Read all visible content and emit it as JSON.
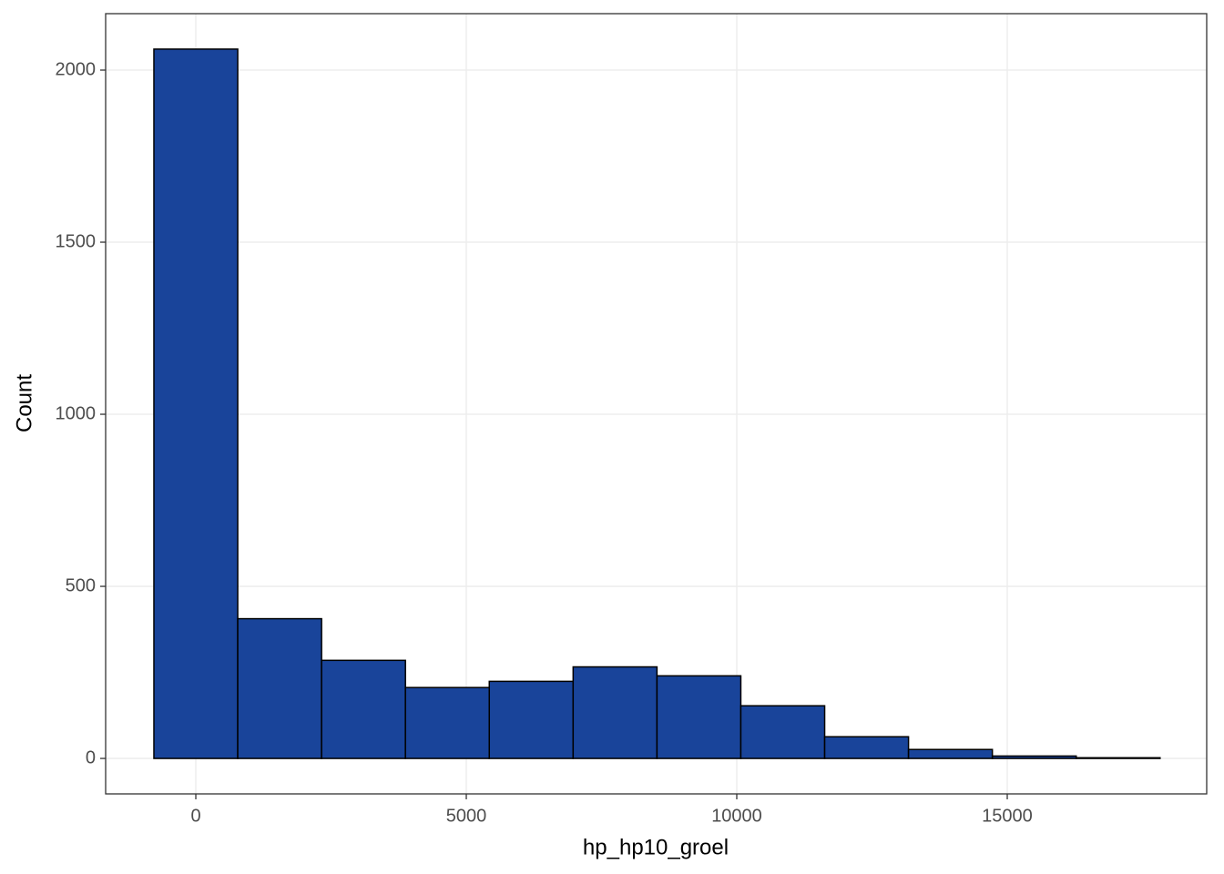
{
  "chart_data": {
    "type": "histogram",
    "x_label": "hp_hp10_groel",
    "y_label": "Count",
    "bins": [
      -775,
      775,
      2325,
      3875,
      5425,
      6975,
      8525,
      10075,
      11625,
      13175,
      14725,
      16275,
      17825
    ],
    "counts": [
      2061,
      406,
      285,
      206,
      224,
      266,
      240,
      153,
      63,
      26,
      7,
      2
    ],
    "color": "#19449a",
    "xlim": [
      -1667,
      18687
    ],
    "ylim": [
      -103,
      2164
    ],
    "xticks": [
      0,
      5000,
      10000,
      15000
    ],
    "yticks": [
      0,
      500,
      1000,
      1500,
      2000
    ],
    "grid": true
  }
}
